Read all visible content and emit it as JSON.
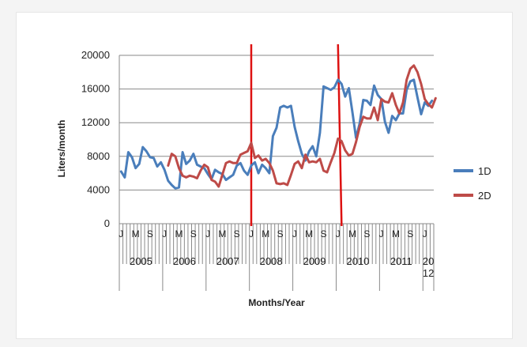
{
  "chart_data": {
    "type": "line",
    "xlabel": "Months/Year",
    "ylabel": "Liters/month",
    "ylim": [
      0,
      20000
    ],
    "y_ticks": [
      "0",
      "4000",
      "8000",
      "12000",
      "16000",
      "20000"
    ],
    "grid": "horizontal",
    "legend_position": "right",
    "month_letters": [
      "J",
      "M",
      "S"
    ],
    "years": [
      "2005",
      "2006",
      "2007",
      "2008",
      "2009",
      "2010",
      "2011",
      "20\n12"
    ],
    "start": "2005-01",
    "markers": [
      {
        "color": "#dd1111",
        "from": "2008-01",
        "to": "2008-01"
      },
      {
        "color": "#dd1111",
        "from": "2010-01",
        "to": "2010-02"
      }
    ],
    "series": [
      {
        "name": "1D",
        "color": "#4a7ebb",
        "values": [
          6200,
          5500,
          8500,
          7900,
          6600,
          7100,
          9100,
          8600,
          7900,
          7800,
          6800,
          7300,
          6400,
          5100,
          4600,
          4200,
          4300,
          8500,
          7100,
          7500,
          8300,
          7000,
          6800,
          6600,
          5900,
          5300,
          6400,
          6100,
          5900,
          5200,
          5500,
          5800,
          6900,
          7200,
          6300,
          5800,
          6900,
          7300,
          6000,
          7000,
          6600,
          6000,
          10400,
          11400,
          13800,
          14000,
          13800,
          14000,
          11500,
          9800,
          8300,
          7500,
          8600,
          9200,
          8000,
          10800,
          16300,
          16100,
          15900,
          16200,
          17100,
          16600,
          15100,
          16100,
          13200,
          10200,
          11900,
          14700,
          14600,
          14100,
          16400,
          15300,
          14800,
          12100,
          10800,
          12800,
          12300,
          13100,
          13100,
          15900,
          16900,
          17100,
          15000,
          13000,
          14400,
          14000,
          14600
        ]
      },
      {
        "name": "2D",
        "color": "#be4b48",
        "values": [
          null,
          null,
          null,
          null,
          null,
          null,
          null,
          null,
          null,
          null,
          null,
          null,
          null,
          6900,
          8300,
          8000,
          6600,
          5700,
          5500,
          5700,
          5600,
          5400,
          6300,
          7000,
          6700,
          5200,
          5000,
          4400,
          5800,
          7200,
          7400,
          7200,
          7200,
          8200,
          8400,
          8600,
          9600,
          7800,
          8100,
          7500,
          7700,
          7200,
          6300,
          4800,
          4700,
          4800,
          4600,
          5800,
          7100,
          7400,
          6600,
          8200,
          7300,
          7400,
          7300,
          7700,
          6300,
          6100,
          7300,
          8400,
          10100,
          9800,
          8700,
          8100,
          8300,
          9700,
          11500,
          12700,
          12500,
          12500,
          13800,
          12300,
          14800,
          14500,
          14400,
          15500,
          14100,
          13100,
          14400,
          17100,
          18400,
          18800,
          18000,
          16600,
          14800,
          14200,
          13800,
          14900
        ]
      }
    ]
  }
}
